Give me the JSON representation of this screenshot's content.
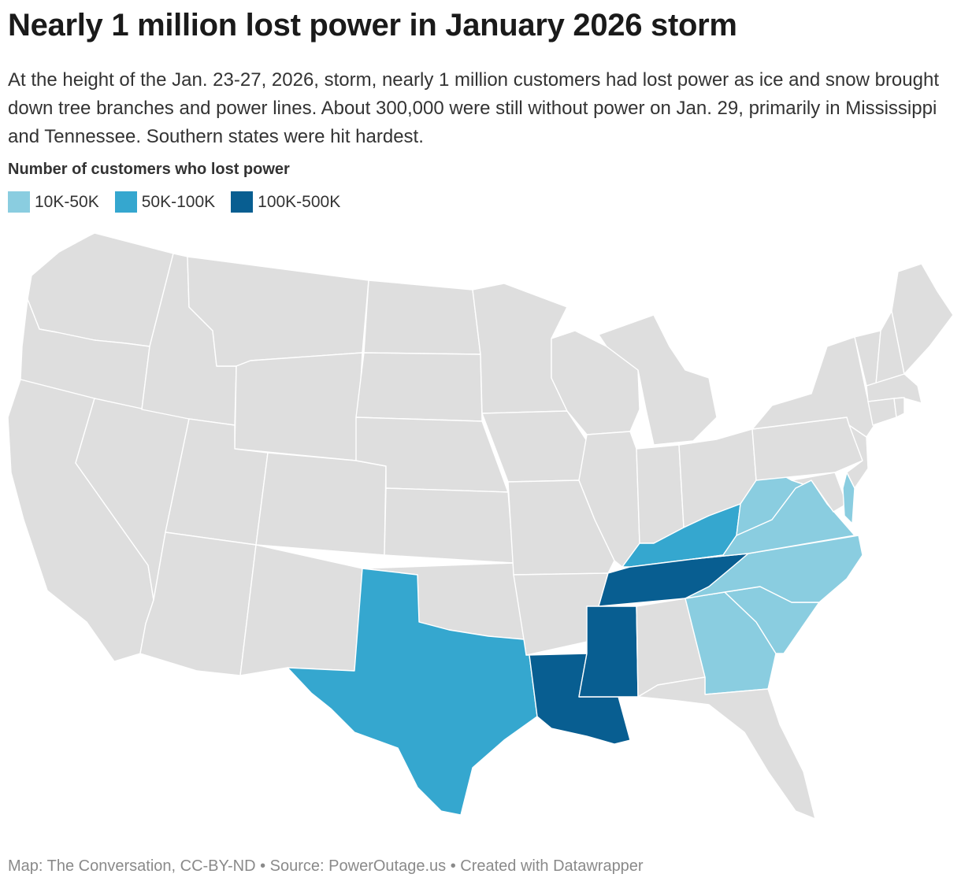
{
  "title": "Nearly 1 million lost power in January 2026 storm",
  "description": "At the height of the Jan. 23-27, 2026, storm, nearly 1 million customers had lost power as ice and snow brought down tree branches and power lines. About 300,000 were still without power on Jan. 29, primarily in Mississippi and Tennessee. Southern states were hit hardest.",
  "legend": {
    "title": "Number of customers who lost power",
    "items": [
      {
        "label": "10K-50K",
        "color": "#8acde0"
      },
      {
        "label": "50K-100K",
        "color": "#35a7cf"
      },
      {
        "label": "100K-500K",
        "color": "#085e91"
      }
    ]
  },
  "map": {
    "base_color": "#dedede",
    "states": {
      "tennessee": "100K-500K",
      "mississippi": "100K-500K",
      "louisiana": "100K-500K",
      "texas": "50K-100K",
      "kentucky": "50K-100K",
      "west-virginia": "10K-50K",
      "virginia": "10K-50K",
      "north-carolina": "10K-50K",
      "south-carolina": "10K-50K",
      "georgia": "10K-50K",
      "delaware": "10K-50K"
    }
  },
  "footer": "Map: The Conversation, CC-BY-ND • Source: PowerOutage.us • Created with Datawrapper"
}
